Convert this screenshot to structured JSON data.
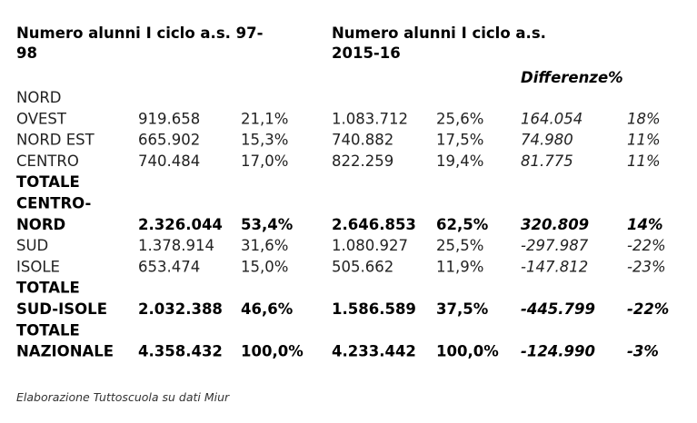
{
  "header": {
    "col_a_lines": [
      "Numero alunni I ciclo a.s. 97-",
      "98"
    ],
    "col_b_lines": [
      "Numero alunni I ciclo a.s.",
      "2015-16"
    ],
    "col_c": "Differenze%"
  },
  "table": {
    "rows": [
      {
        "label_lines": [
          "NORD",
          "OVEST"
        ],
        "bold": false,
        "cells": [
          "919.658",
          "21,1%",
          "1.083.712",
          "25,6%",
          "164.054",
          "18%"
        ]
      },
      {
        "label_lines": [
          "NORD EST"
        ],
        "bold": false,
        "cells": [
          "665.902",
          "15,3%",
          "740.882",
          "17,5%",
          "74.980",
          "11%"
        ]
      },
      {
        "label_lines": [
          "CENTRO"
        ],
        "bold": false,
        "cells": [
          "740.484",
          "17,0%",
          "822.259",
          "19,4%",
          "81.775",
          "11%"
        ]
      },
      {
        "label_lines": [
          "TOTALE",
          "CENTRO-",
          "NORD"
        ],
        "bold": true,
        "cells": [
          "2.326.044",
          "53,4%",
          "2.646.853",
          "62,5%",
          "320.809",
          "14%"
        ]
      },
      {
        "label_lines": [
          "SUD"
        ],
        "bold": false,
        "cells": [
          "1.378.914",
          "31,6%",
          "1.080.927",
          "25,5%",
          "-297.987",
          "-22%"
        ]
      },
      {
        "label_lines": [
          "ISOLE"
        ],
        "bold": false,
        "cells": [
          "653.474",
          "15,0%",
          "505.662",
          "11,9%",
          "-147.812",
          "-23%"
        ]
      },
      {
        "label_lines": [
          "TOTALE",
          "SUD-ISOLE"
        ],
        "bold": true,
        "cells": [
          "2.032.388",
          "46,6%",
          "1.586.589",
          "37,5%",
          "-445.799",
          "-22%"
        ]
      },
      {
        "label_lines": [
          "TOTALE",
          "NAZIONALE"
        ],
        "bold": true,
        "cells": [
          "4.358.432",
          "100,0%",
          "4.233.442",
          "100,0%",
          "-124.990",
          "-3%"
        ]
      }
    ]
  },
  "footnote": "Elaborazione Tuttoscuola su dati Miur"
}
